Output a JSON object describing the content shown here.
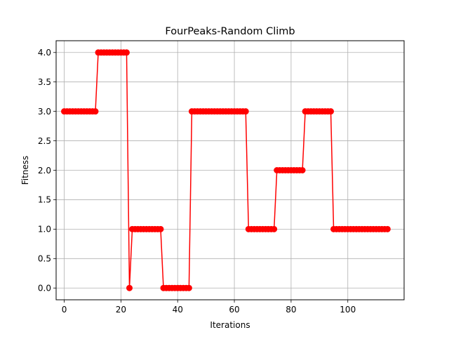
{
  "chart_data": {
    "type": "line",
    "title": "FourPeaks-Random Climb",
    "xlabel": "Iterations",
    "ylabel": "Fitness",
    "xlim": [
      -2.85,
      119.85
    ],
    "ylim": [
      -0.2,
      4.2
    ],
    "grid": true,
    "x_ticks": [
      0,
      20,
      40,
      60,
      80,
      100
    ],
    "y_ticks": [
      0.0,
      0.5,
      1.0,
      1.5,
      2.0,
      2.5,
      3.0,
      3.5,
      4.0
    ],
    "y_tick_labels": [
      "0.0",
      "0.5",
      "1.0",
      "1.5",
      "2.0",
      "2.5",
      "3.0",
      "3.5",
      "4.0"
    ],
    "series": [
      {
        "color": "#ff0000",
        "marker": "circle",
        "x": [
          0,
          1,
          2,
          3,
          4,
          5,
          6,
          7,
          8,
          9,
          10,
          11,
          12,
          13,
          14,
          15,
          16,
          17,
          18,
          19,
          20,
          21,
          22,
          23,
          24,
          25,
          26,
          27,
          28,
          29,
          30,
          31,
          32,
          33,
          34,
          35,
          36,
          37,
          38,
          39,
          40,
          41,
          42,
          43,
          44,
          45,
          46,
          47,
          48,
          49,
          50,
          51,
          52,
          53,
          54,
          55,
          56,
          57,
          58,
          59,
          60,
          61,
          62,
          63,
          64,
          65,
          66,
          67,
          68,
          69,
          70,
          71,
          72,
          73,
          74,
          75,
          76,
          77,
          78,
          79,
          80,
          81,
          82,
          83,
          84,
          85,
          86,
          87,
          88,
          89,
          90,
          91,
          92,
          93,
          94,
          95,
          96,
          97,
          98,
          99,
          100,
          101,
          102,
          103,
          104,
          105,
          106,
          107,
          108,
          109,
          110,
          111,
          112,
          113,
          114
        ],
        "values": [
          3,
          3,
          3,
          3,
          3,
          3,
          3,
          3,
          3,
          3,
          3,
          3,
          4,
          4,
          4,
          4,
          4,
          4,
          4,
          4,
          4,
          4,
          4,
          0,
          1,
          1,
          1,
          1,
          1,
          1,
          1,
          1,
          1,
          1,
          1,
          0,
          0,
          0,
          0,
          0,
          0,
          0,
          0,
          0,
          0,
          3,
          3,
          3,
          3,
          3,
          3,
          3,
          3,
          3,
          3,
          3,
          3,
          3,
          3,
          3,
          3,
          3,
          3,
          3,
          3,
          1,
          1,
          1,
          1,
          1,
          1,
          1,
          1,
          1,
          1,
          2,
          2,
          2,
          2,
          2,
          2,
          2,
          2,
          2,
          2,
          3,
          3,
          3,
          3,
          3,
          3,
          3,
          3,
          3,
          3,
          1,
          1,
          1,
          1,
          1,
          1,
          1,
          1,
          1,
          1,
          1,
          1,
          1,
          1,
          1,
          1,
          1,
          1,
          1,
          1
        ]
      }
    ]
  }
}
